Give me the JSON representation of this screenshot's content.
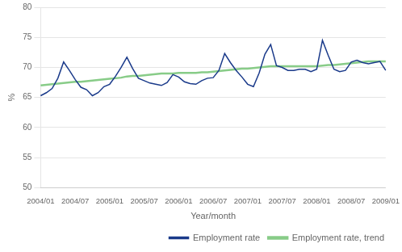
{
  "chart_data": {
    "type": "line",
    "xlabel": "Year/month",
    "ylabel": "%",
    "categories": [
      "2004/01",
      null,
      null,
      null,
      null,
      null,
      "2004/07",
      null,
      null,
      null,
      null,
      null,
      "2005/01",
      null,
      null,
      null,
      null,
      null,
      "2005/07",
      null,
      null,
      null,
      null,
      null,
      "2006/01",
      null,
      null,
      null,
      null,
      null,
      "2006/07",
      null,
      null,
      null,
      null,
      null,
      "2007/01",
      null,
      null,
      null,
      null,
      null,
      "2007/07",
      null,
      null,
      null,
      null,
      null,
      "2008/01",
      null,
      null,
      null,
      null,
      null,
      "2008/07",
      null,
      null,
      null,
      null,
      null,
      "2009/01"
    ],
    "series": [
      {
        "name": "Employment rate",
        "color": "#1a3a8a",
        "values": [
          65.3,
          65.8,
          66.5,
          68.2,
          70.9,
          69.5,
          68.0,
          66.7,
          66.3,
          65.3,
          65.8,
          66.8,
          67.2,
          68.5,
          70.0,
          71.7,
          69.8,
          68.2,
          67.8,
          67.4,
          67.2,
          67.0,
          67.5,
          68.8,
          68.4,
          67.6,
          67.3,
          67.2,
          67.8,
          68.2,
          68.3,
          69.5,
          72.3,
          70.8,
          69.5,
          68.4,
          67.2,
          66.8,
          69.1,
          72.2,
          73.8,
          70.3,
          70.0,
          69.5,
          69.5,
          69.7,
          69.7,
          69.3,
          69.7,
          74.5,
          72.0,
          69.7,
          69.3,
          69.5,
          70.9,
          71.2,
          70.8,
          70.6,
          70.8,
          71.0,
          69.5
        ]
      },
      {
        "name": "Employment rate, trend",
        "color": "#88cc88",
        "values": [
          67.0,
          67.1,
          67.2,
          67.3,
          67.4,
          67.5,
          67.6,
          67.6,
          67.7,
          67.8,
          67.9,
          68.0,
          68.1,
          68.2,
          68.3,
          68.5,
          68.6,
          68.6,
          68.7,
          68.8,
          68.9,
          69.0,
          69.0,
          69.0,
          69.1,
          69.1,
          69.1,
          69.1,
          69.2,
          69.2,
          69.3,
          69.4,
          69.5,
          69.6,
          69.7,
          69.8,
          69.8,
          69.9,
          70.0,
          70.1,
          70.2,
          70.2,
          70.2,
          70.2,
          70.2,
          70.2,
          70.2,
          70.2,
          70.2,
          70.3,
          70.4,
          70.4,
          70.5,
          70.6,
          70.7,
          70.8,
          70.9,
          71.0,
          71.0,
          71.0,
          71.0
        ]
      }
    ],
    "ylim": [
      50,
      80
    ],
    "yticks": [
      50,
      55,
      60,
      65,
      70,
      75,
      80
    ],
    "grid": "y",
    "legend": "lower right"
  }
}
